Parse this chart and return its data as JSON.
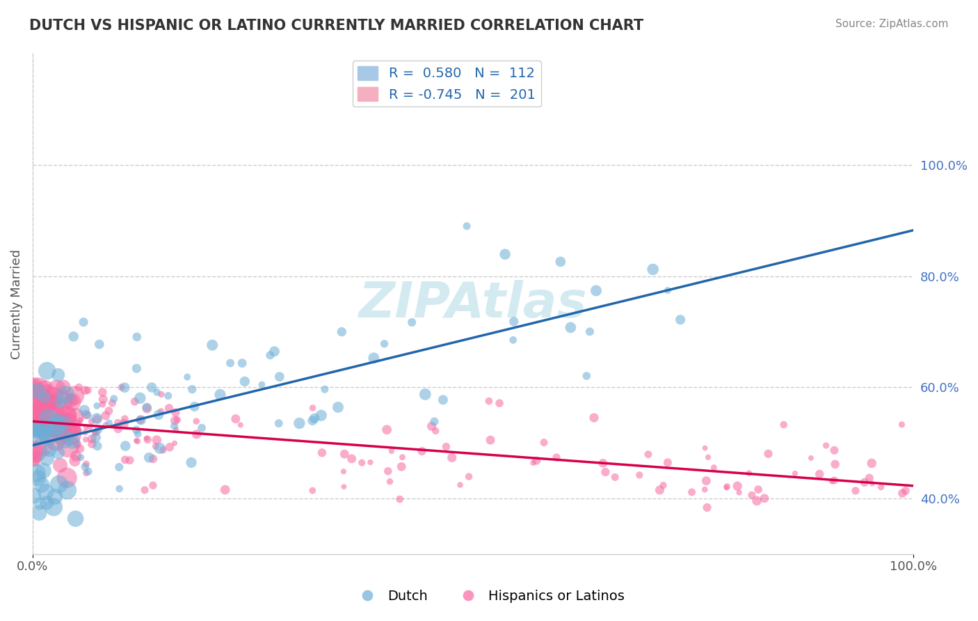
{
  "title": "DUTCH VS HISPANIC OR LATINO CURRENTLY MARRIED CORRELATION CHART",
  "source_text": "Source: ZipAtlas.com",
  "ylabel": "Currently Married",
  "watermark": "ZIPAtlas",
  "R_dutch": 0.58,
  "N_dutch": 112,
  "R_hispanic": -0.745,
  "N_hispanic": 201,
  "dutch_color": "#6baed6",
  "hispanic_color": "#f768a1",
  "dutch_line_color": "#2166ac",
  "hispanic_line_color": "#d6004c",
  "background_color": "#ffffff",
  "grid_color": "#cccccc",
  "title_color": "#333333",
  "watermark_color": "#d0e8f0",
  "seed": 42
}
